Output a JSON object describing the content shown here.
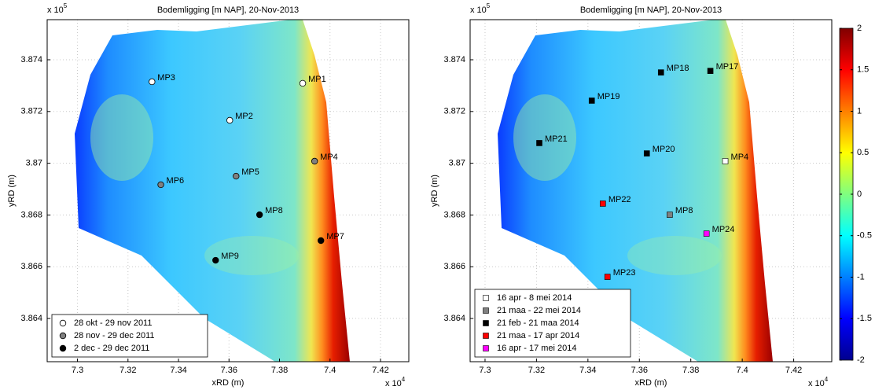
{
  "chart_data": [
    {
      "type": "scatter",
      "title": "Bodemligging [m NAP], 20-Nov-2013",
      "x_label": "xRD (m)",
      "y_label": "yRD (m)",
      "x_exponent": {
        "base": "x 10",
        "power": "4"
      },
      "y_exponent": {
        "base": "x 10",
        "power": "5"
      },
      "xlim": [
        72880,
        74312
      ],
      "ylim": [
        386233,
        387555
      ],
      "xticks": [
        {
          "value": 73000,
          "label": "7.3"
        },
        {
          "value": 73200,
          "label": "7.32"
        },
        {
          "value": 73400,
          "label": "7.34"
        },
        {
          "value": 73600,
          "label": "7.36"
        },
        {
          "value": 73800,
          "label": "7.38"
        },
        {
          "value": 74000,
          "label": "7.4"
        },
        {
          "value": 74200,
          "label": "7.42"
        }
      ],
      "yticks": [
        {
          "value": 386400,
          "label": "3.864"
        },
        {
          "value": 386600,
          "label": "3.866"
        },
        {
          "value": 386800,
          "label": "3.868"
        },
        {
          "value": 387000,
          "label": "3.87"
        },
        {
          "value": 387200,
          "label": "3.872"
        },
        {
          "value": 387400,
          "label": "3.874"
        }
      ],
      "grid": true,
      "legend": "lower left",
      "series": [
        {
          "name": "28 okt - 29 nov 2011",
          "color": "#ffffff",
          "marker": "circle",
          "x": [
            73295,
            73892,
            73603
          ],
          "y": [
            387315,
            387309,
            387166
          ],
          "labels": [
            "MP3",
            "MP1",
            "MP2"
          ]
        },
        {
          "name": "28 nov - 29 dec 2011",
          "color": "#808080",
          "marker": "circle",
          "x": [
            73939,
            73628,
            73330
          ],
          "y": [
            387008,
            386950,
            386917
          ],
          "labels": [
            "MP4",
            "MP5",
            "MP6"
          ]
        },
        {
          "name": "2 dec - 29 dec 2011",
          "color": "#000000",
          "marker": "circle",
          "x": [
            73721,
            73964,
            73547
          ],
          "y": [
            386801,
            386701,
            386625
          ],
          "labels": [
            "MP8",
            "MP7",
            "MP9"
          ]
        }
      ]
    },
    {
      "type": "scatter",
      "title": "Bodemligging [m NAP], 20-Nov-2013",
      "x_label": "xRD (m)",
      "y_label": "yRD (m)",
      "x_exponent": {
        "base": "x 10",
        "power": "4"
      },
      "y_exponent": {
        "base": "x 10",
        "power": "5"
      },
      "xlim": [
        72942,
        74348
      ],
      "ylim": [
        386233,
        387555
      ],
      "xticks": [
        {
          "value": 73000,
          "label": "7.3"
        },
        {
          "value": 73200,
          "label": "7.32"
        },
        {
          "value": 73400,
          "label": "7.34"
        },
        {
          "value": 73600,
          "label": "7.36"
        },
        {
          "value": 73800,
          "label": "7.38"
        },
        {
          "value": 74000,
          "label": "7.4"
        },
        {
          "value": 74200,
          "label": "7.42"
        }
      ],
      "yticks": [
        {
          "value": 386400,
          "label": "3.864"
        },
        {
          "value": 386600,
          "label": "3.866"
        },
        {
          "value": 386800,
          "label": "3.868"
        },
        {
          "value": 387000,
          "label": "3.87"
        },
        {
          "value": 387200,
          "label": "3.872"
        },
        {
          "value": 387400,
          "label": "3.874"
        }
      ],
      "grid": true,
      "legend": "lower left",
      "series": [
        {
          "name": "16 apr - 8 mei 2014",
          "color": "#ffffff",
          "marker": "square",
          "x": [
            73934
          ],
          "y": [
            387008
          ],
          "labels": [
            "MP4"
          ]
        },
        {
          "name": "21 maa - 22 mei 2014",
          "color": "#808080",
          "marker": "square",
          "x": [
            73718
          ],
          "y": [
            386801
          ],
          "labels": [
            "MP8"
          ]
        },
        {
          "name": "21 feb - 21 maa 2014",
          "color": "#000000",
          "marker": "square",
          "x": [
            73684,
            73876,
            73415,
            73211,
            73629
          ],
          "y": [
            387351,
            387357,
            387242,
            387078,
            387038
          ],
          "labels": [
            "MP18",
            "MP17",
            "MP19",
            "MP21",
            "MP20"
          ]
        },
        {
          "name": "21 maa - 17 apr 2014",
          "color": "#ff0000",
          "marker": "square",
          "x": [
            73458,
            73476
          ],
          "y": [
            386844,
            386561
          ],
          "labels": [
            "MP22",
            "MP23"
          ]
        },
        {
          "name": "16 apr - 17 mei 2014",
          "color": "#ff00ff",
          "marker": "square",
          "x": [
            73861
          ],
          "y": [
            386728
          ],
          "labels": [
            "MP24"
          ]
        }
      ]
    },
    {
      "type": "colorbar",
      "colormap": "jet",
      "ylim": [
        -2,
        2
      ],
      "yticks": [
        -2,
        -1.5,
        -1,
        -0.5,
        0,
        0.5,
        1,
        1.5,
        2
      ]
    }
  ]
}
